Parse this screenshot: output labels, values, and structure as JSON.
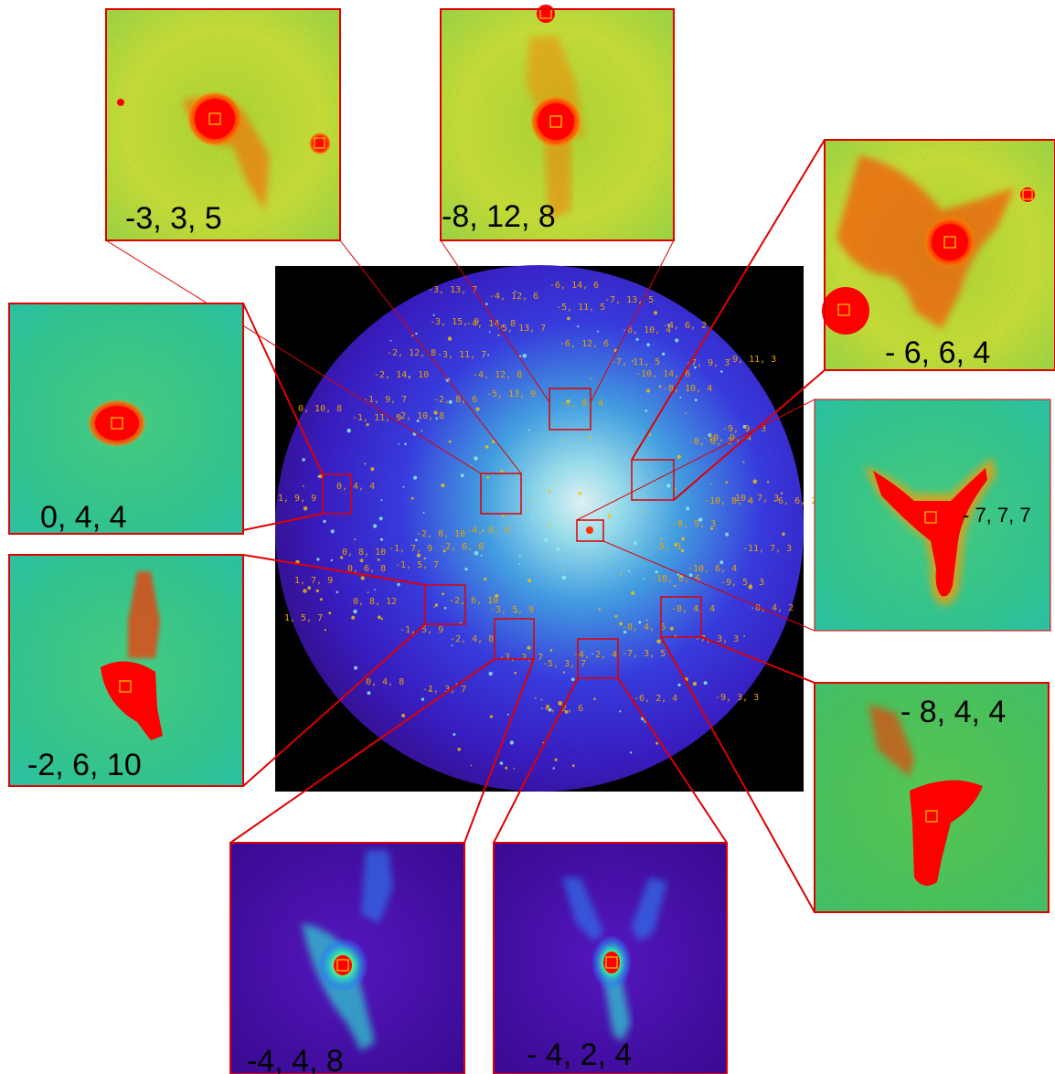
{
  "insets": [
    {
      "id": "inset-1",
      "label": "-3, 3, 5",
      "palette": "hot"
    },
    {
      "id": "inset-2",
      "label": "-8, 12, 8",
      "palette": "hot"
    },
    {
      "id": "inset-3",
      "label": "- 6, 6, 4",
      "palette": "hot"
    },
    {
      "id": "inset-4",
      "label": "0, 4, 4",
      "palette": "cool"
    },
    {
      "id": "inset-5",
      "label": "- 7, 7, 7",
      "palette": "cool"
    },
    {
      "id": "inset-6",
      "label": "-2, 6, 10",
      "palette": "hot"
    },
    {
      "id": "inset-7",
      "label": "- 8, 4, 4",
      "palette": "hot"
    },
    {
      "id": "inset-8",
      "label": "-4, 4, 8",
      "palette": "blue"
    },
    {
      "id": "inset-9",
      "label": "- 4, 2, 4",
      "palette": "blue"
    }
  ],
  "spot_labels": [
    "-3, 13, 7",
    "-4, 12, 6",
    "-6, 14, 6",
    "-5, 11, 5",
    "-7, 13, 5",
    "-3, 15, 9",
    "-4, 14, 8",
    "-5, 13, 7",
    "-6, 10, 4",
    "-4, 6, 2",
    "-2, 12, 8",
    "-3, 11, 7",
    "-6, 12, 6",
    "-7, 9, 3",
    "-9, 11, 3",
    "-2, 14, 10",
    "-4, 12, 8",
    "-7, 11, 5",
    "-10, 14, 6",
    "-8, 10, 4",
    "0, 10, 8",
    "-1, 9, 7",
    "-2, 8, 6",
    "-5, 13, 9",
    "-6, 8, 4",
    "-1, 11, 9",
    "-2, 10, 8",
    "-8, 8, 2",
    "-9, 9, 3",
    "-10, 9, 4",
    "0, 4, 4",
    "1, 9, 9",
    "-10, 8, 4",
    "-10, 7, 3",
    "-6, 6, 2",
    "-2, 8, 10",
    "-4, 8, 6",
    "-8, 5, 3",
    "-8, 4, 2",
    "-11, 7, 3",
    "0, 8, 10",
    "-1, 7, 9",
    "-2, 6, 8",
    "-5, 3",
    "-9, 5, 3",
    "0, 6, 8",
    "-1, 5, 7",
    "-10, 6, 4",
    "-10, 6, 6",
    "1, 7, 9",
    "0, 8, 12",
    "-2, 6, 10",
    "-8, 4, 6",
    "-8, 4, 4",
    "1, 5, 7",
    "-1, 5, 9",
    "-2, 4, 8",
    "-3, 5, 9",
    "-7, 3, 3",
    "-3, 3, 7",
    "-5, 3, 7",
    "-4, 2, 4",
    "-7, 3, 5",
    "0, 4, 8",
    "-1, 3, 7",
    "-6, 2, 4",
    "-9, 3, 3",
    "-4, 2, 6"
  ]
}
